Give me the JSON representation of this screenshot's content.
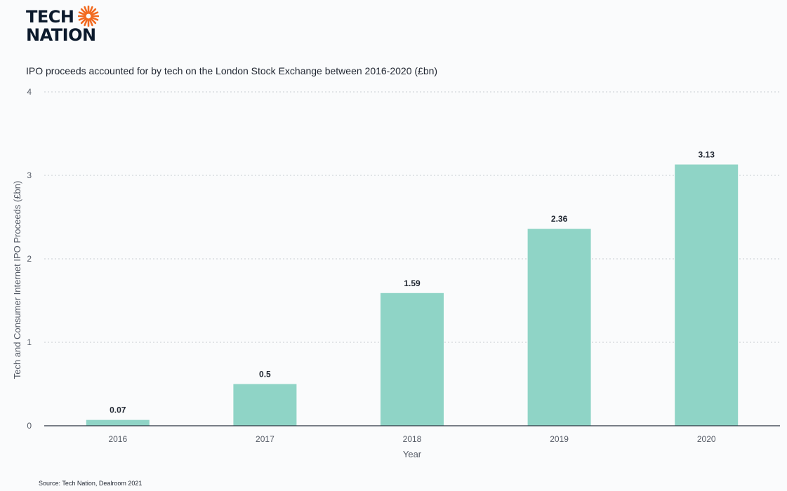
{
  "brand": {
    "line1": "TECH",
    "line2": "NATION",
    "sun_color": "#f26b21",
    "text_color": "#0c1a2c"
  },
  "source": "Source: Tech Nation, Dealroom 2021",
  "chart_data": {
    "type": "bar",
    "title": "IPO proceeds accounted for by tech on the London Stock Exchange between 2016-2020 (£bn)",
    "xlabel": "Year",
    "ylabel": "Tech and Consumer Internet IPO Proceeds (£bn)",
    "categories": [
      "2016",
      "2017",
      "2018",
      "2019",
      "2020"
    ],
    "values": [
      0.07,
      0.5,
      1.59,
      2.36,
      3.13
    ],
    "value_labels": [
      "0.07",
      "0.5",
      "1.59",
      "2.36",
      "3.13"
    ],
    "ylim": [
      0,
      4
    ],
    "yticks": [
      0,
      1,
      2,
      3,
      4
    ],
    "grid": true,
    "bar_color": "#8fd4c6",
    "axis_color": "#2b3440",
    "grid_color": "#c8ccd2"
  }
}
